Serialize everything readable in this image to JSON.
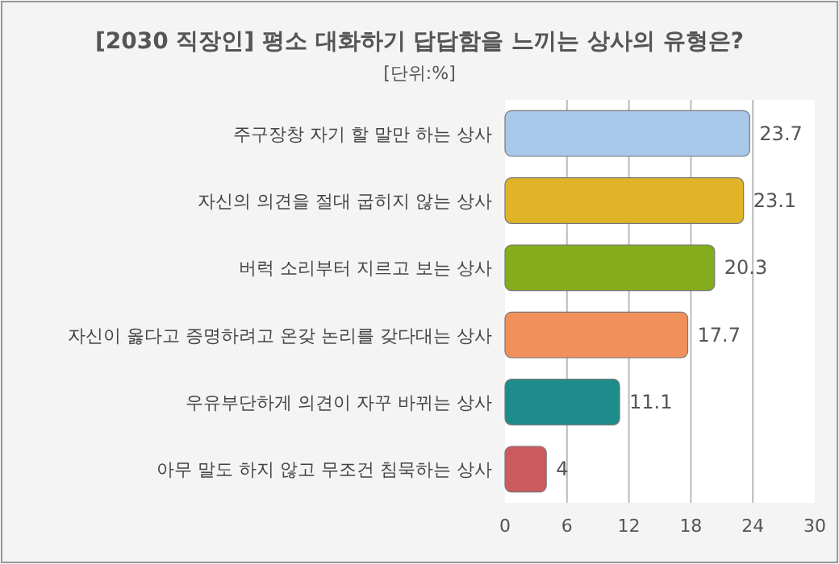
{
  "chart_data": {
    "type": "bar",
    "orientation": "horizontal",
    "title": "[2030 직장인] 평소 대화하기 답답함을 느끼는 상사의 유형은?",
    "subtitle": "[단위:%]",
    "categories": [
      "주구장창 자기 할 말만 하는 상사",
      "자신의 의견을 절대 굽히지 않는 상사",
      "버럭 소리부터 지르고 보는 상사",
      "자신이 옳다고 증명하려고 온갖 논리를 갖다대는 상사",
      "우유부단하게 의견이 자꾸 바뀌는 상사",
      "아무 말도 하지 않고 무조건 침묵하는 상사"
    ],
    "values": [
      23.7,
      23.1,
      20.3,
      17.7,
      11.1,
      4
    ],
    "colors": [
      "#a8c8ea",
      "#e0b428",
      "#84ac1c",
      "#f0905a",
      "#1f8c8c",
      "#cc5a5e"
    ],
    "xlim": [
      0,
      30
    ],
    "xticks": [
      0,
      6,
      12,
      18,
      24,
      30
    ],
    "grid": "x",
    "data_labels": true
  }
}
